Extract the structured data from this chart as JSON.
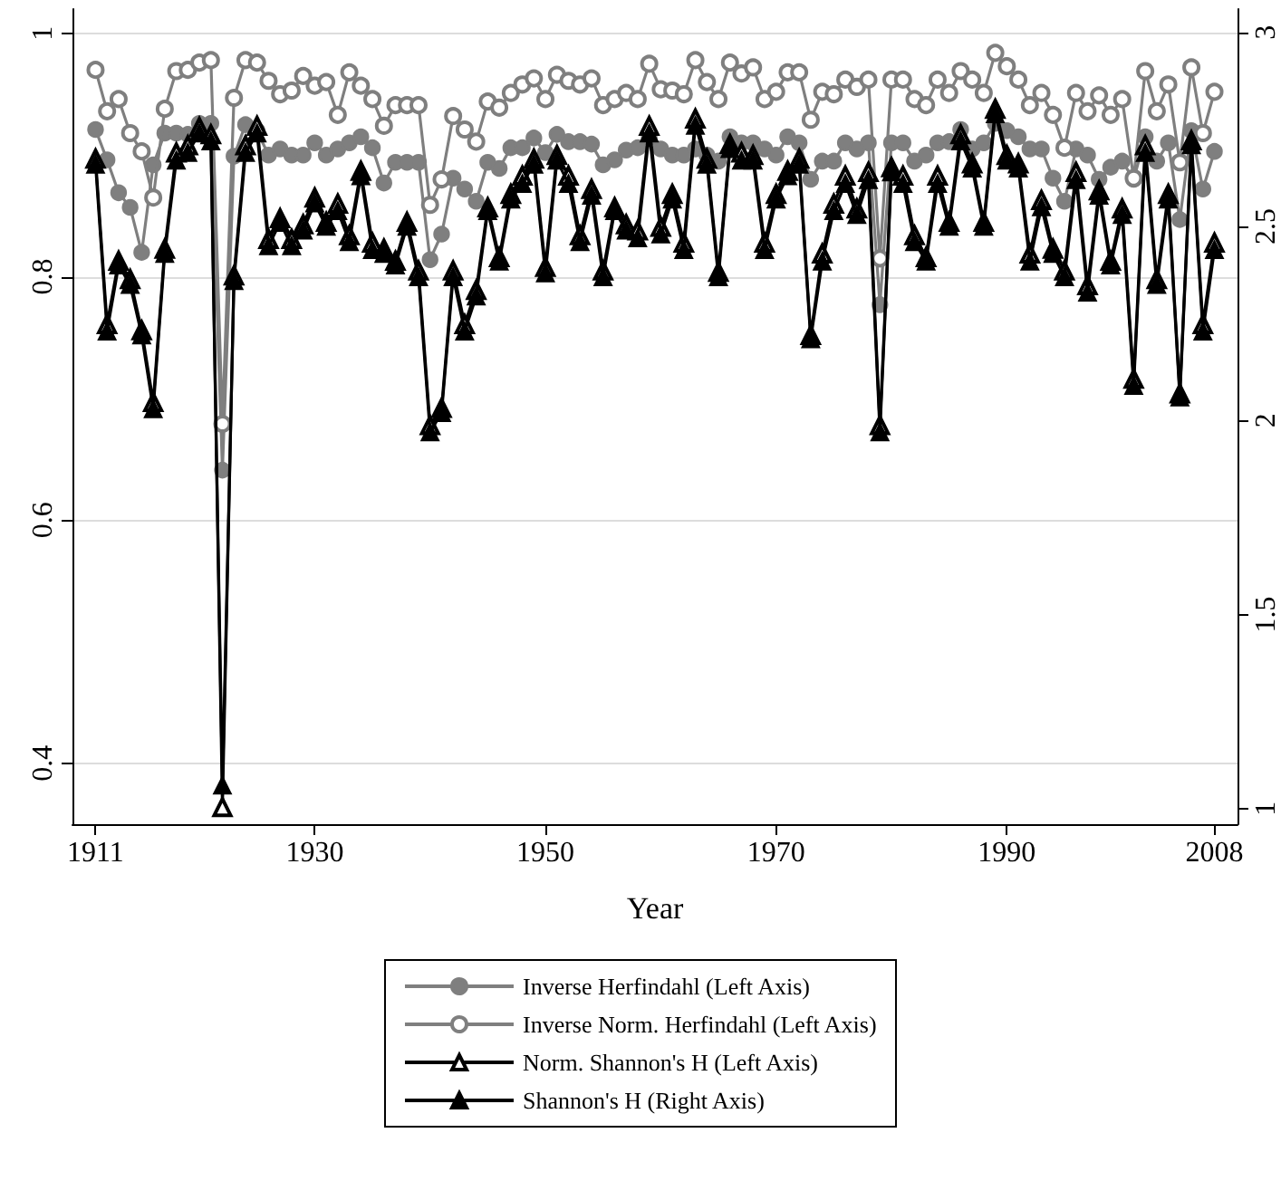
{
  "chart_data": {
    "type": "line",
    "xlabel": "Year",
    "legend": "bottom",
    "grid": "y",
    "xlim": [
      1909,
      2010
    ],
    "xticks": [
      1911,
      1930,
      1950,
      1970,
      1990,
      2008
    ],
    "ylim": [
      0.35,
      1.02
    ],
    "yticks": [
      0.4,
      0.6,
      0.8,
      1
    ],
    "y2lim": [
      0.96,
      3.06
    ],
    "y2ticks": [
      1,
      1.5,
      2,
      2.5,
      3
    ],
    "x": [
      1911,
      1912,
      1913,
      1914,
      1915,
      1916,
      1917,
      1918,
      1919,
      1920,
      1921,
      1922,
      1923,
      1924,
      1925,
      1926,
      1927,
      1928,
      1929,
      1930,
      1931,
      1932,
      1933,
      1934,
      1935,
      1936,
      1937,
      1938,
      1939,
      1940,
      1941,
      1942,
      1943,
      1944,
      1945,
      1946,
      1947,
      1948,
      1949,
      1950,
      1951,
      1952,
      1953,
      1954,
      1955,
      1956,
      1957,
      1958,
      1959,
      1960,
      1961,
      1962,
      1963,
      1964,
      1965,
      1966,
      1967,
      1968,
      1969,
      1970,
      1971,
      1972,
      1973,
      1974,
      1975,
      1976,
      1977,
      1978,
      1979,
      1980,
      1981,
      1982,
      1983,
      1984,
      1985,
      1986,
      1987,
      1988,
      1989,
      1990,
      1991,
      1992,
      1993,
      1994,
      1995,
      1996,
      1997,
      1998,
      1999,
      2000,
      2001,
      2002,
      2003,
      2004,
      2005,
      2006,
      2007,
      2008
    ],
    "series": [
      {
        "name": "Inverse Herfindahl (Left Axis)",
        "color": "#7f7f7f",
        "marker": "circle",
        "values": [
          0.921,
          0.896,
          0.869,
          0.857,
          0.82,
          0.892,
          0.918,
          0.918,
          0.917,
          0.926,
          0.926,
          0.641,
          0.899,
          0.925,
          0.92,
          0.9,
          0.905,
          0.9,
          0.9,
          0.91,
          0.9,
          0.905,
          0.91,
          0.915,
          0.906,
          0.877,
          0.894,
          0.894,
          0.894,
          0.814,
          0.835,
          0.881,
          0.872,
          0.862,
          0.894,
          0.889,
          0.906,
          0.906,
          0.914,
          0.902,
          0.917,
          0.911,
          0.911,
          0.909,
          0.892,
          0.896,
          0.904,
          0.906,
          0.914,
          0.905,
          0.9,
          0.9,
          0.905,
          0.9,
          0.895,
          0.915,
          0.91,
          0.91,
          0.905,
          0.9,
          0.915,
          0.91,
          0.88,
          0.895,
          0.895,
          0.91,
          0.905,
          0.91,
          0.777,
          0.91,
          0.91,
          0.895,
          0.9,
          0.91,
          0.911,
          0.921,
          0.905,
          0.91,
          0.926,
          0.92,
          0.915,
          0.905,
          0.905,
          0.881,
          0.862,
          0.905,
          0.9,
          0.88,
          0.89,
          0.895,
          0.88,
          0.915,
          0.895,
          0.91,
          0.847,
          0.92,
          0.872,
          0.903
        ]
      },
      {
        "name": "Inverse Norm. Herfindahl (Left Axis)",
        "color": "#7f7f7f",
        "marker": "circle-open",
        "values": [
          0.97,
          0.936,
          0.946,
          0.918,
          0.903,
          0.865,
          0.938,
          0.969,
          0.97,
          0.976,
          0.978,
          0.679,
          0.947,
          0.978,
          0.976,
          0.961,
          0.95,
          0.953,
          0.965,
          0.957,
          0.96,
          0.933,
          0.968,
          0.957,
          0.946,
          0.924,
          0.941,
          0.941,
          0.941,
          0.859,
          0.88,
          0.932,
          0.921,
          0.911,
          0.944,
          0.939,
          0.951,
          0.958,
          0.963,
          0.946,
          0.966,
          0.961,
          0.958,
          0.963,
          0.941,
          0.946,
          0.951,
          0.946,
          0.975,
          0.954,
          0.953,
          0.95,
          0.978,
          0.96,
          0.946,
          0.976,
          0.967,
          0.972,
          0.946,
          0.952,
          0.968,
          0.968,
          0.929,
          0.952,
          0.95,
          0.962,
          0.956,
          0.962,
          0.815,
          0.962,
          0.962,
          0.946,
          0.941,
          0.962,
          0.951,
          0.969,
          0.962,
          0.951,
          0.984,
          0.973,
          0.962,
          0.941,
          0.951,
          0.933,
          0.906,
          0.951,
          0.936,
          0.949,
          0.933,
          0.946,
          0.881,
          0.969,
          0.936,
          0.958,
          0.894,
          0.972,
          0.918,
          0.952
        ]
      },
      {
        "name": "Norm. Shannon's H (Left Axis)",
        "color": "#000000",
        "marker": "triangle-open",
        "values": [
          0.897,
          0.761,
          0.813,
          0.798,
          0.756,
          0.697,
          0.823,
          0.902,
          0.908,
          0.923,
          0.917,
          0.364,
          0.801,
          0.908,
          0.924,
          0.831,
          0.848,
          0.831,
          0.843,
          0.865,
          0.845,
          0.86,
          0.834,
          0.887,
          0.828,
          0.823,
          0.813,
          0.845,
          0.805,
          0.678,
          0.692,
          0.805,
          0.761,
          0.789,
          0.857,
          0.816,
          0.868,
          0.883,
          0.897,
          0.808,
          0.9,
          0.883,
          0.834,
          0.872,
          0.805,
          0.857,
          0.843,
          0.838,
          0.924,
          0.841,
          0.868,
          0.828,
          0.93,
          0.897,
          0.804,
          0.909,
          0.902,
          0.9,
          0.828,
          0.868,
          0.887,
          0.897,
          0.752,
          0.819,
          0.86,
          0.883,
          0.856,
          0.886,
          0.678,
          0.89,
          0.883,
          0.834,
          0.816,
          0.883,
          0.845,
          0.917,
          0.893,
          0.845,
          0.938,
          0.9,
          0.893,
          0.819,
          0.863,
          0.823,
          0.805,
          0.886,
          0.793,
          0.871,
          0.813,
          0.856,
          0.716,
          0.908,
          0.798,
          0.868,
          0.704,
          0.912,
          0.761,
          0.828
        ]
      },
      {
        "name": "Shannon's H (Right Axis)",
        "color": "#000000",
        "marker": "triangle",
        "axis": "y2",
        "values": [
          2.66,
          2.23,
          2.4,
          2.35,
          2.22,
          2.03,
          2.43,
          2.67,
          2.69,
          2.74,
          2.72,
          1.06,
          2.36,
          2.69,
          2.74,
          2.45,
          2.51,
          2.45,
          2.49,
          2.56,
          2.5,
          2.54,
          2.46,
          2.63,
          2.44,
          2.43,
          2.4,
          2.5,
          2.37,
          1.97,
          2.02,
          2.37,
          2.23,
          2.32,
          2.54,
          2.41,
          2.57,
          2.61,
          2.66,
          2.38,
          2.67,
          2.61,
          2.46,
          2.58,
          2.37,
          2.54,
          2.49,
          2.47,
          2.74,
          2.48,
          2.57,
          2.44,
          2.76,
          2.66,
          2.37,
          2.7,
          2.67,
          2.67,
          2.44,
          2.57,
          2.63,
          2.66,
          2.21,
          2.41,
          2.54,
          2.61,
          2.53,
          2.62,
          1.97,
          2.64,
          2.61,
          2.46,
          2.41,
          2.61,
          2.5,
          2.72,
          2.65,
          2.5,
          2.79,
          2.67,
          2.65,
          2.41,
          2.55,
          2.43,
          2.37,
          2.62,
          2.33,
          2.58,
          2.4,
          2.53,
          2.09,
          2.69,
          2.35,
          2.57,
          2.06,
          2.71,
          2.23,
          2.44
        ]
      }
    ]
  }
}
